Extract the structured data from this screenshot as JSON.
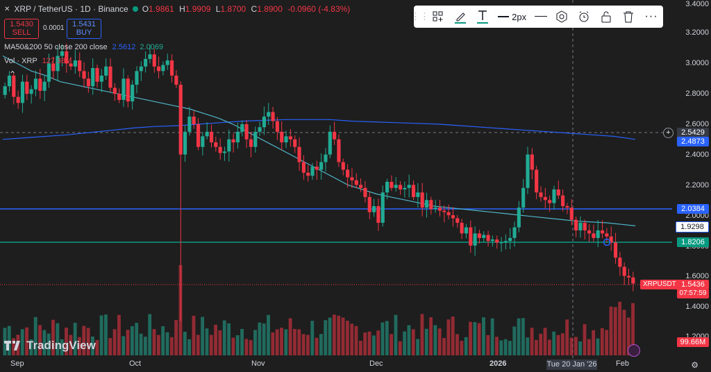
{
  "header": {
    "symbol": "XRP / TetherUS · 1D · Binance",
    "o_label": "O",
    "o": "1.9861",
    "h_label": "H",
    "h": "1.9909",
    "l_label": "L",
    "l": "1.8700",
    "c_label": "C",
    "c": "1.8900",
    "change": "-0.0960 (-4.83%)"
  },
  "trade": {
    "sell_price": "1.5430",
    "sell_label": "SELL",
    "spread": "0.0001",
    "buy_price": "1.5431",
    "buy_label": "BUY"
  },
  "indicators": {
    "ma_label": "MA50&200 50 close 200 close",
    "ma50": "2.5612",
    "ma200": "2.0069",
    "vol_label": "Vol · XRP",
    "vol_value": "127.38M"
  },
  "toolbar": {
    "width_label": "2px"
  },
  "price_axis": {
    "labels": [
      "3.4000",
      "3.2000",
      "3.0000",
      "2.8000",
      "2.6000",
      "2.4000",
      "2.2000",
      "2.0000",
      "1.8000",
      "1.6000",
      "1.4000",
      "1.2000"
    ],
    "crosshair_price": "2.5429",
    "ma200_tag": "2.4873",
    "line_blue": "2.0384",
    "ma50_tag": "1.9298",
    "line_green": "1.8206",
    "last_price": "1.5436",
    "countdown": "07:57:59",
    "volume_tag": "99.66M"
  },
  "symbol_tag": "XRPUSDT",
  "time_axis": {
    "labels": [
      "Sep",
      "Oct",
      "Nov",
      "Dec",
      "2026",
      "Feb"
    ],
    "crosshair_date": "Tue 20 Jan '26"
  },
  "logo": {
    "text": "TradingView"
  },
  "colors": {
    "up": "#22ab94",
    "down": "#f23645",
    "bg": "#1e1e1e",
    "ma": "#2196b0",
    "hline_blue": "#2962ff",
    "hline_green": "#089981"
  },
  "chart_data": {
    "type": "candlestick",
    "ylim": [
      1.1,
      3.4
    ],
    "closes": [
      2.85,
      2.92,
      2.78,
      2.74,
      2.88,
      2.8,
      2.83,
      2.9,
      2.82,
      2.88,
      3.0,
      2.95,
      3.05,
      3.08,
      3.0,
      2.98,
      3.02,
      2.95,
      2.9,
      2.85,
      2.97,
      2.88,
      2.92,
      2.98,
      2.84,
      2.8,
      2.76,
      2.9,
      2.75,
      2.86,
      2.95,
      2.98,
      3.03,
      3.06,
      2.98,
      2.95,
      2.99,
      3.02,
      2.92,
      2.86,
      2.4,
      2.55,
      2.65,
      2.6,
      2.45,
      2.52,
      2.55,
      2.48,
      2.45,
      2.41,
      2.42,
      2.5,
      2.48,
      2.55,
      2.6,
      2.5,
      2.45,
      2.55,
      2.58,
      2.65,
      2.68,
      2.62,
      2.55,
      2.48,
      2.52,
      2.5,
      2.45,
      2.35,
      2.28,
      2.26,
      2.32,
      2.3,
      2.35,
      2.4,
      2.55,
      2.5,
      2.35,
      2.3,
      2.25,
      2.23,
      2.2,
      2.18,
      2.12,
      2.02,
      2.06,
      1.95,
      2.15,
      2.22,
      2.18,
      2.2,
      2.17,
      2.18,
      2.2,
      2.12,
      2.15,
      2.05,
      2.1,
      2.04,
      2.05,
      2.03,
      2.02,
      2.0,
      1.98,
      1.95,
      1.88,
      1.92,
      1.8,
      1.88,
      1.85,
      1.87,
      1.83,
      1.84,
      1.82,
      1.82,
      1.83,
      1.85,
      1.92,
      2.05,
      2.18,
      2.4,
      2.3,
      2.15,
      2.12,
      2.1,
      2.08,
      2.17,
      2.13,
      2.06,
      2.05,
      1.97,
      1.9,
      1.95,
      1.9,
      1.88,
      1.85,
      1.9,
      1.88,
      1.86,
      1.82,
      1.72,
      1.66,
      1.6,
      1.59,
      1.55
    ],
    "ma50": [
      3.05,
      3.0,
      2.95,
      2.92,
      2.88,
      2.86,
      2.84,
      2.82,
      2.8,
      2.78,
      2.76,
      2.74,
      2.72,
      2.7,
      2.67,
      2.64,
      2.6,
      2.55,
      2.5,
      2.45,
      2.4,
      2.35,
      2.3,
      2.25,
      2.2,
      2.17,
      2.14,
      2.12,
      2.1,
      2.08,
      2.06,
      2.05,
      2.04,
      2.03,
      2.02,
      2.01,
      2.0,
      1.99,
      1.98,
      1.97,
      1.96,
      1.955,
      1.95,
      1.94,
      1.93
    ],
    "ma200": [
      2.5,
      2.51,
      2.52,
      2.53,
      2.545,
      2.56,
      2.575,
      2.585,
      2.59,
      2.6,
      2.61,
      2.62,
      2.625,
      2.63,
      2.63,
      2.63,
      2.62,
      2.615,
      2.61,
      2.605,
      2.6,
      2.59,
      2.58,
      2.57,
      2.56,
      2.55,
      2.54,
      2.53,
      2.52,
      2.5
    ]
  }
}
